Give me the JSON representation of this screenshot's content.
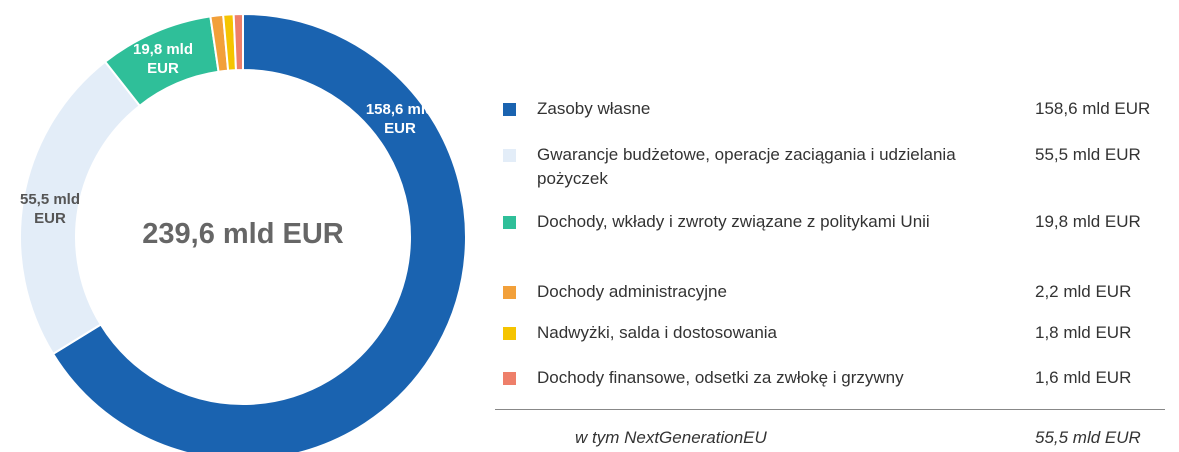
{
  "chart_data": {
    "type": "donut",
    "center_label": "239,6 mld EUR",
    "categories": [
      "Zasoby własne",
      "Gwarancje budżetowe, operacje zaciągania i udzielania pożyczek",
      "Dochody, wkłady i zwroty związane z politykami Unii",
      "Dochody administracyjne",
      "Nadwyżki, salda i dostosowania",
      "Dochody finansowe, odsetki za zwłokę i grzywny"
    ],
    "values": [
      158.6,
      55.5,
      19.8,
      2.2,
      1.8,
      1.6
    ],
    "value_labels": [
      "158,6 mld EUR",
      "55,5 mld EUR",
      "19,8 mld EUR",
      "2,2 mld EUR",
      "1,8 mld EUR",
      "1,6 mld EUR"
    ],
    "colors": [
      "#1a63b0",
      "#e3edf8",
      "#2fbf99",
      "#f2a03a",
      "#f5c400",
      "#ee7f6a"
    ],
    "footnote_label": "w tym NextGenerationEU",
    "footnote_value": "55,5 mld EUR"
  }
}
